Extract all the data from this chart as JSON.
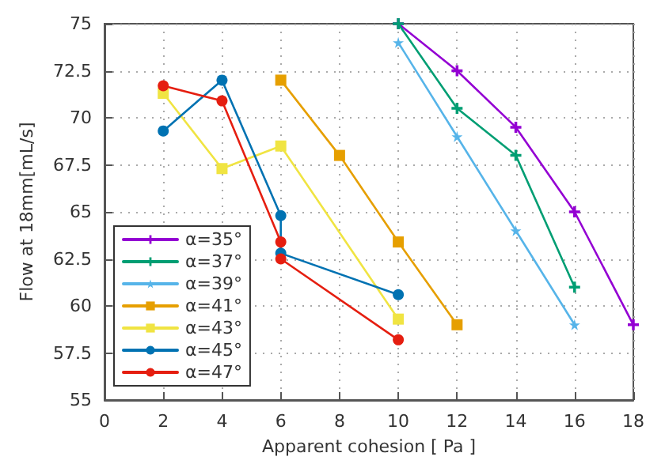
{
  "chart_data": {
    "type": "line",
    "xlabel": "Apparent cohesion [ Pa ]",
    "ylabel": "Flow at 18mm[mL/s]",
    "xlim": [
      0,
      18
    ],
    "xticks": [
      0,
      2,
      4,
      6,
      8,
      10,
      12,
      14,
      16,
      18
    ],
    "ylim": [
      55,
      75
    ],
    "yticks": [
      55,
      57.5,
      60,
      62.5,
      65,
      67.5,
      70,
      72.5,
      75
    ],
    "grid": true,
    "legend": "bottom left",
    "line_style": "solid",
    "series": [
      {
        "name": "α=35°",
        "color": "#9400d3",
        "marker": "cross",
        "x": [
          10,
          12,
          14,
          16,
          18
        ],
        "values": [
          75,
          72.5,
          69.5,
          65,
          59
        ]
      },
      {
        "name": "α=37°",
        "color": "#009e73",
        "marker": "cross",
        "x": [
          10,
          12,
          14,
          16
        ],
        "values": [
          75,
          70.5,
          68,
          61
        ]
      },
      {
        "name": "α=39°",
        "color": "#56b4e9",
        "marker": "star",
        "x": [
          10,
          12,
          14,
          16
        ],
        "values": [
          74,
          69,
          64,
          59
        ]
      },
      {
        "name": "α=41°",
        "color": "#e69f00",
        "marker": "square",
        "x": [
          6,
          8,
          10,
          12
        ],
        "values": [
          72,
          68,
          63.4,
          59
        ]
      },
      {
        "name": "α=43°",
        "color": "#f0e442",
        "marker": "square",
        "x": [
          2,
          4,
          6,
          10
        ],
        "values": [
          71.3,
          67.3,
          68.5,
          59.3
        ]
      },
      {
        "name": "α=45°",
        "color": "#0072b2",
        "marker": "circle",
        "x": [
          2,
          4,
          6,
          6,
          10
        ],
        "values": [
          69.3,
          72,
          64.8,
          62.8,
          60.6
        ]
      },
      {
        "name": "α=47°",
        "color": "#e51e10",
        "marker": "circle",
        "x": [
          2,
          4,
          6,
          6,
          10
        ],
        "values": [
          71.7,
          70.9,
          63.4,
          62.5,
          58.2
        ]
      }
    ]
  }
}
